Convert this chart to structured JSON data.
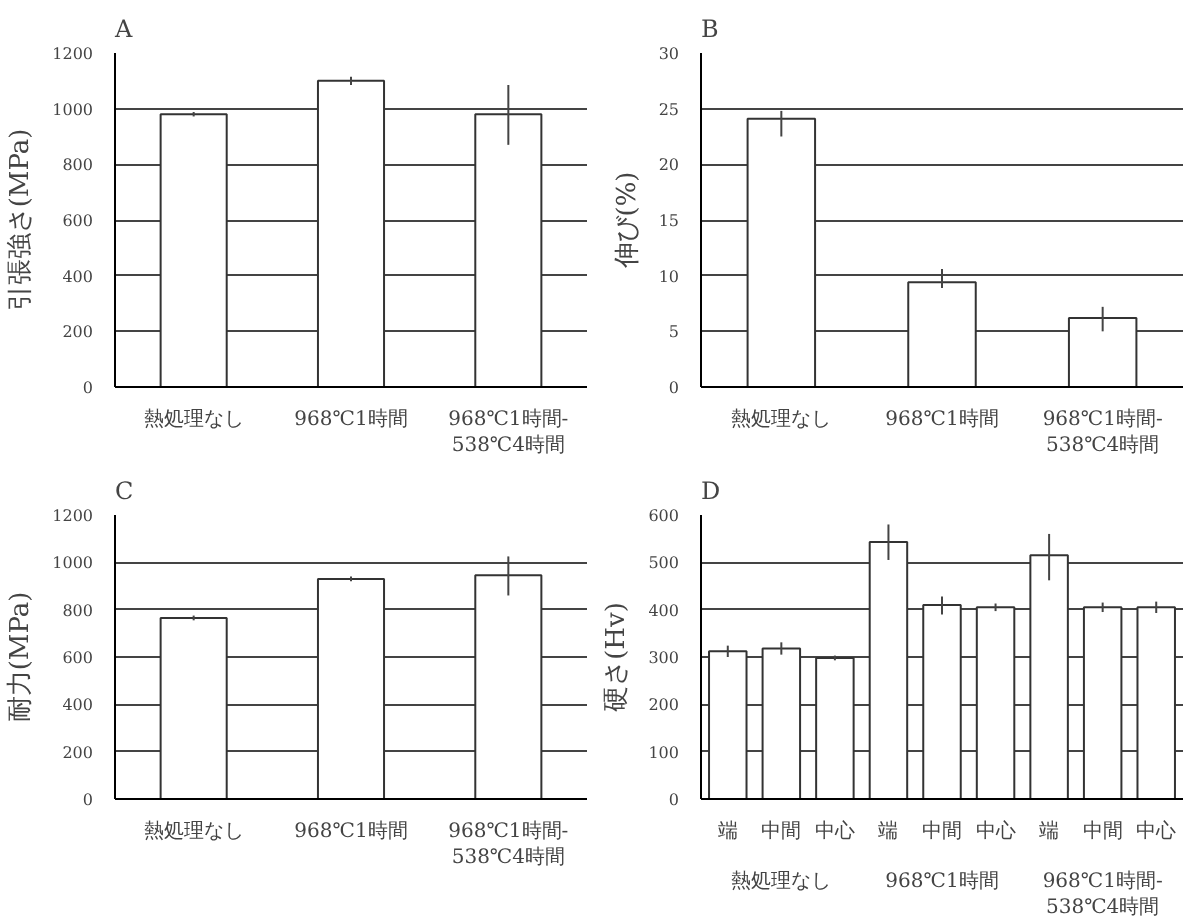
{
  "chart_data": [
    {
      "type": "bar",
      "title": "A",
      "ylabel": "引張強さ(MPa)",
      "categories": [
        "熱処理なし",
        "968℃1時間",
        "968℃1時間-538℃4時間"
      ],
      "values": [
        980,
        1100,
        980
      ],
      "errors": [
        8,
        15,
        [
          870,
          1085
        ]
      ],
      "color": "#ffffff",
      "ylim": [
        0,
        1200
      ],
      "yticks": [
        0,
        200,
        400,
        600,
        800,
        1000,
        1200
      ],
      "grid": "y"
    },
    {
      "type": "bar",
      "title": "B",
      "ylabel": "伸び(%)",
      "categories": [
        "熱処理なし",
        "968℃1時間",
        "968℃1時間-538℃4時間"
      ],
      "values": [
        24.1,
        9.4,
        6.2
      ],
      "errors": [
        [
          22.5,
          24.8
        ],
        [
          8.9,
          10.6
        ],
        [
          5.0,
          7.2
        ]
      ],
      "color": "#ffffff",
      "ylim": [
        0,
        30
      ],
      "yticks": [
        0,
        5,
        10,
        15,
        20,
        25,
        30
      ],
      "grid": "y"
    },
    {
      "type": "bar",
      "title": "C",
      "ylabel": "耐力(MPa)",
      "categories": [
        "熱処理なし",
        "968℃1時間",
        "968℃1時間-538℃4時間"
      ],
      "values": [
        765,
        930,
        945
      ],
      "errors": [
        10,
        10,
        [
          860,
          1025
        ]
      ],
      "color": "#ffffff",
      "ylim": [
        0,
        1200
      ],
      "yticks": [
        0,
        200,
        400,
        600,
        800,
        1000,
        1200
      ],
      "grid": "y"
    },
    {
      "type": "bar",
      "title": "D",
      "ylabel": "硬さ(Hv)",
      "categories": [
        "端",
        "中間",
        "中心",
        "端",
        "中間",
        "中心",
        "端",
        "中間",
        "中心"
      ],
      "values": [
        312,
        318,
        298,
        543,
        410,
        405,
        515,
        405,
        405
      ],
      "errors": [
        12,
        13,
        5,
        [
          505,
          580
        ],
        [
          390,
          428
        ],
        8,
        [
          462,
          560
        ],
        10,
        12
      ],
      "annotations": [
        "熱処理なし",
        "968℃1時間",
        "968℃1時間-538℃4時間"
      ],
      "color": "#ffffff",
      "ylim": [
        0,
        600
      ],
      "yticks": [
        0,
        100,
        200,
        300,
        400,
        500,
        600
      ],
      "grid": "y"
    }
  ]
}
